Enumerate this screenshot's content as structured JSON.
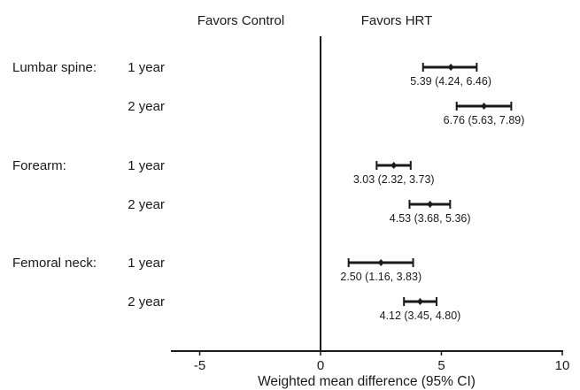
{
  "chart_data": {
    "type": "forest",
    "title": "",
    "xlabel": "Weighted mean difference (95% CI)",
    "xlim": [
      -6.2,
      10
    ],
    "xticks": [
      "-5",
      "0",
      "5",
      "10"
    ],
    "xtick_values": [
      -5,
      0,
      5,
      10
    ],
    "reference_line": 0,
    "favors_left": "Favors Control",
    "favors_right": "Favors HRT",
    "groups": [
      {
        "name": "Lumbar spine:",
        "rows": [
          {
            "period": "1 year",
            "estimate": 5.39,
            "lower": 4.24,
            "upper": 6.46,
            "label": "5.39 (4.24, 6.46)"
          },
          {
            "period": "2 year",
            "estimate": 6.76,
            "lower": 5.63,
            "upper": 7.89,
            "label": "6.76 (5.63, 7.89)"
          }
        ]
      },
      {
        "name": "Forearm:",
        "rows": [
          {
            "period": "1 year",
            "estimate": 3.03,
            "lower": 2.32,
            "upper": 3.73,
            "label": "3.03 (2.32, 3.73)"
          },
          {
            "period": "2 year",
            "estimate": 4.53,
            "lower": 3.68,
            "upper": 5.36,
            "label": "4.53 (3.68, 5.36)"
          }
        ]
      },
      {
        "name": "Femoral neck:",
        "rows": [
          {
            "period": "1 year",
            "estimate": 2.5,
            "lower": 1.16,
            "upper": 3.83,
            "label": "2.50 (1.16, 3.83)"
          },
          {
            "period": "2 year",
            "estimate": 4.12,
            "lower": 3.45,
            "upper": 4.8,
            "label": "4.12 (3.45, 4.80)"
          }
        ]
      }
    ]
  }
}
